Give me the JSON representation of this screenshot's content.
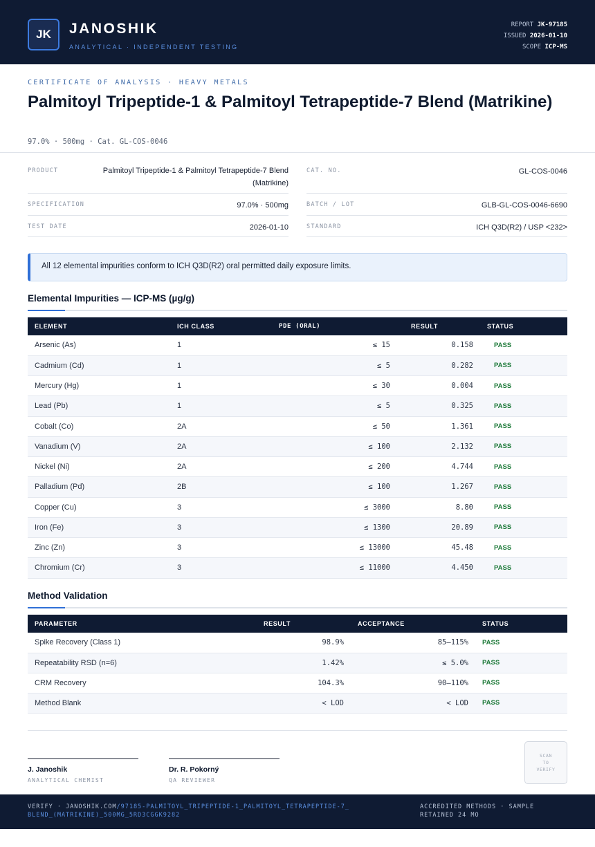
{
  "header": {
    "logo_text": "JK",
    "brand": "JANOSHIK",
    "tagline": "ANALYTICAL · INDEPENDENT TESTING",
    "meta": [
      {
        "label": "REPORT",
        "value": "JK-97185"
      },
      {
        "label": "ISSUED",
        "value": "2026-01-10"
      },
      {
        "label": "SCOPE",
        "value": "ICP-MS"
      }
    ]
  },
  "doc": {
    "label": "CERTIFICATE OF ANALYSIS · HEAVY METALS",
    "title": "Palmitoyl Tripeptide-1 & Palmitoyl Tetrapeptide-7 Blend (Matrikine)",
    "subline": "97.0% · 500mg  ·  Cat. GL-COS-0046"
  },
  "info": {
    "product": {
      "key": "PRODUCT",
      "value": "Palmitoyl Tripeptide-1 & Palmitoyl Tetrapeptide-7 Blend (Matrikine)"
    },
    "cat": {
      "key": "CAT. NO.",
      "value": "GL-COS-0046"
    },
    "spec": {
      "key": "SPECIFICATION",
      "value": "97.0% · 500mg"
    },
    "batch": {
      "key": "BATCH / LOT",
      "value": "GLB-GL-COS-0046-6690"
    },
    "date": {
      "key": "TEST DATE",
      "value": "2026-01-10"
    },
    "standard": {
      "key": "STANDARD",
      "value": "ICH Q3D(R2) / USP <232>"
    }
  },
  "notice": "All 12 elemental impurities conform to ICH Q3D(R2) oral permitted daily exposure limits.",
  "impurities": {
    "title": "Elemental Impurities — ICP-MS (µg/g)",
    "headers": [
      "ELEMENT",
      "ICH CLASS",
      "PDE (ORAL)",
      "RESULT",
      "STATUS"
    ],
    "rows": [
      [
        "Arsenic (As)",
        "1",
        "≤ 15",
        "0.158",
        "PASS"
      ],
      [
        "Cadmium (Cd)",
        "1",
        "≤ 5",
        "0.282",
        "PASS"
      ],
      [
        "Mercury (Hg)",
        "1",
        "≤ 30",
        "0.004",
        "PASS"
      ],
      [
        "Lead (Pb)",
        "1",
        "≤ 5",
        "0.325",
        "PASS"
      ],
      [
        "Cobalt (Co)",
        "2A",
        "≤ 50",
        "1.361",
        "PASS"
      ],
      [
        "Vanadium (V)",
        "2A",
        "≤ 100",
        "2.132",
        "PASS"
      ],
      [
        "Nickel (Ni)",
        "2A",
        "≤ 200",
        "4.744",
        "PASS"
      ],
      [
        "Palladium (Pd)",
        "2B",
        "≤ 100",
        "1.267",
        "PASS"
      ],
      [
        "Copper (Cu)",
        "3",
        "≤ 3000",
        "8.80",
        "PASS"
      ],
      [
        "Iron (Fe)",
        "3",
        "≤ 1300",
        "20.89",
        "PASS"
      ],
      [
        "Zinc (Zn)",
        "3",
        "≤ 13000",
        "45.48",
        "PASS"
      ],
      [
        "Chromium (Cr)",
        "3",
        "≤ 11000",
        "4.450",
        "PASS"
      ]
    ]
  },
  "validation": {
    "title": "Method Validation",
    "headers": [
      "PARAMETER",
      "RESULT",
      "ACCEPTANCE",
      "STATUS"
    ],
    "rows": [
      [
        "Spike Recovery (Class 1)",
        "98.9%",
        "85–115%",
        "PASS"
      ],
      [
        "Repeatability RSD (n=6)",
        "1.42%",
        "≤ 5.0%",
        "PASS"
      ],
      [
        "CRM Recovery",
        "104.3%",
        "90–110%",
        "PASS"
      ],
      [
        "Method Blank",
        "< LOD",
        "< LOD",
        "PASS"
      ]
    ]
  },
  "signatures": [
    {
      "name": "J. Janoshik",
      "role": "ANALYTICAL CHEMIST"
    },
    {
      "name": "Dr. R. Pokorný",
      "role": "QA REVIEWER"
    }
  ],
  "qr": {
    "line1": "SCAN",
    "line2": "TO",
    "line3": "VERIFY"
  },
  "footer": {
    "verify_prefix": "VERIFY · JANOSHIK.COM",
    "verify_path": "/97185-PALMITOYL_TRIPEPTIDE-1_PALMITOYL_TETRAPEPTIDE-7_BLEND_(MATRIKINE)_500MG_5RD3CGGK9282",
    "right": "ACCREDITED METHODS · SAMPLE RETAINED 24 MO"
  }
}
